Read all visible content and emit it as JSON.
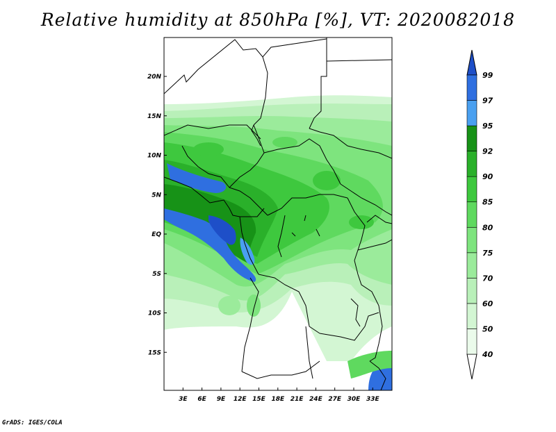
{
  "title": "Relative humidity at 850hPa [%], VT: 2020082018",
  "credit": "GrADS: IGES/COLA",
  "map": {
    "lat_labels": [
      {
        "text": "20N",
        "lat": 20
      },
      {
        "text": "15N",
        "lat": 15
      },
      {
        "text": "10N",
        "lat": 10
      },
      {
        "text": "5N",
        "lat": 5
      },
      {
        "text": "EQ",
        "lat": 0
      },
      {
        "text": "5S",
        "lat": -5
      },
      {
        "text": "10S",
        "lat": -10
      },
      {
        "text": "15S",
        "lat": -15
      }
    ],
    "lon_labels": [
      {
        "text": "3E",
        "lon": 3
      },
      {
        "text": "6E",
        "lon": 6
      },
      {
        "text": "9E",
        "lon": 9
      },
      {
        "text": "12E",
        "lon": 12
      },
      {
        "text": "15E",
        "lon": 15
      },
      {
        "text": "18E",
        "lon": 18
      },
      {
        "text": "21E",
        "lon": 21
      },
      {
        "text": "24E",
        "lon": 24
      },
      {
        "text": "27E",
        "lon": 27
      },
      {
        "text": "30E",
        "lon": 30
      },
      {
        "text": "33E",
        "lon": 33
      }
    ]
  },
  "colorbar": {
    "levels": [
      {
        "label": "40",
        "color": "#ebfbeb"
      },
      {
        "label": "50",
        "color": "#d3f6d3"
      },
      {
        "label": "60",
        "color": "#b9f0b9"
      },
      {
        "label": "70",
        "color": "#9beb9b"
      },
      {
        "label": "75",
        "color": "#7ee47e"
      },
      {
        "label": "80",
        "color": "#5fd95f"
      },
      {
        "label": "85",
        "color": "#3ec83e"
      },
      {
        "label": "90",
        "color": "#2ab02a"
      },
      {
        "label": "92",
        "color": "#179217"
      },
      {
        "label": "95",
        "color": "#4aa0f0"
      },
      {
        "label": "97",
        "color": "#2f6fe0"
      },
      {
        "label": "99",
        "color": "#1e4fc8"
      }
    ],
    "below_color": "#ffffff",
    "above_color": "#1e4fc8"
  }
}
